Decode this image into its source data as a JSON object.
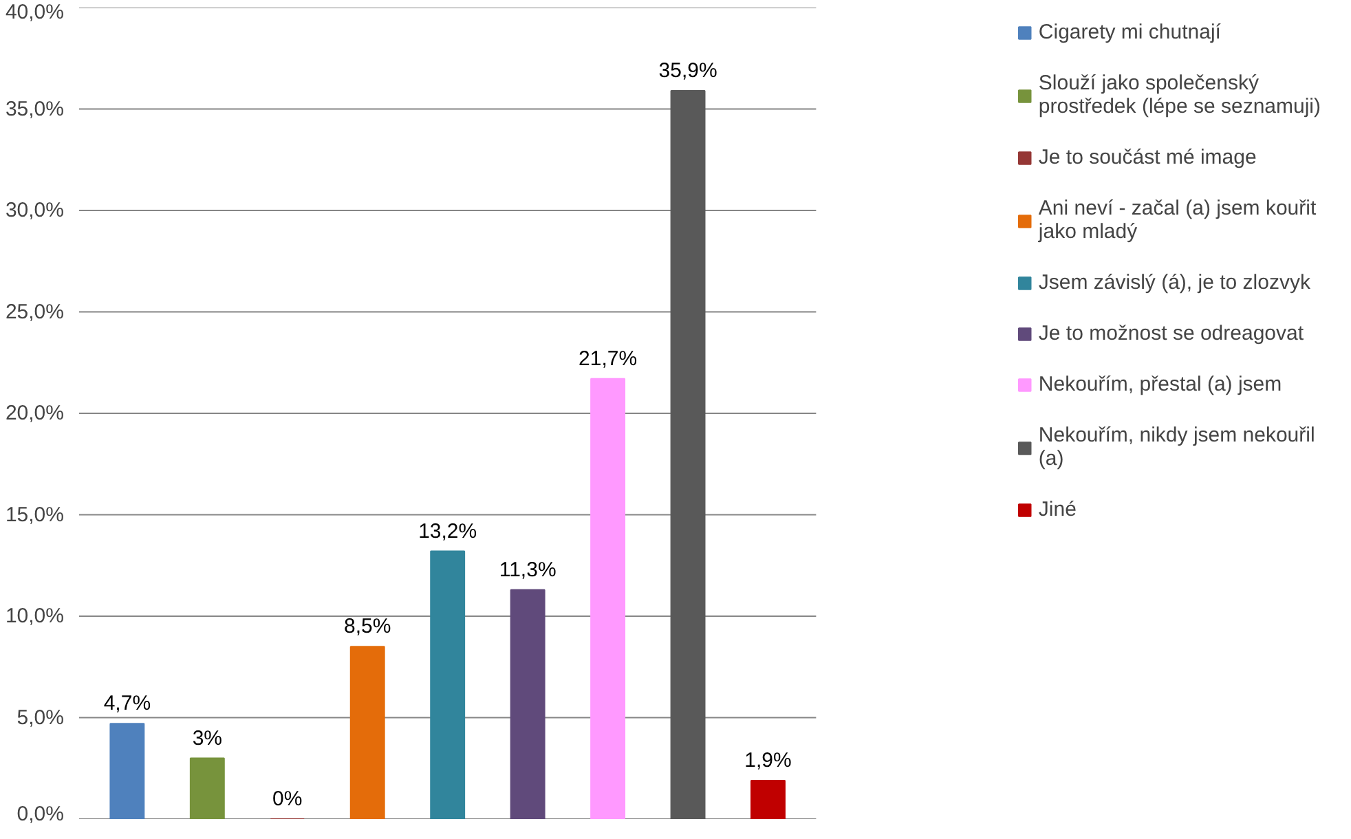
{
  "chart_data": {
    "type": "bar",
    "categories": [
      null,
      null,
      null,
      null,
      null,
      null,
      null,
      null,
      null
    ],
    "ylim": [
      0,
      40
    ],
    "yticks": [
      {
        "value": 0,
        "label": "0,0%"
      },
      {
        "value": 5,
        "label": "5,0%"
      },
      {
        "value": 10,
        "label": "10,0%"
      },
      {
        "value": 15,
        "label": "15,0%"
      },
      {
        "value": 20,
        "label": "20,0%"
      },
      {
        "value": 25,
        "label": "25,0%"
      },
      {
        "value": 30,
        "label": "30,0%"
      },
      {
        "value": 35,
        "label": "35,0%"
      },
      {
        "value": 40,
        "label": "40,0%"
      }
    ],
    "grid": "y",
    "legend": "right",
    "series": [
      {
        "name": "Cigarety mi chutnají",
        "color": "#4f81bd",
        "values": [
          4.7,
          null,
          null,
          null,
          null,
          null,
          null,
          null,
          null
        ],
        "value_labels": [
          "4,7%",
          null,
          null,
          null,
          null,
          null,
          null,
          null,
          null
        ]
      },
      {
        "name": "Slouží jako společenský prostředek (lépe se seznamuji)",
        "color": "#77933c",
        "values": [
          null,
          3,
          null,
          null,
          null,
          null,
          null,
          null,
          null
        ],
        "value_labels": [
          null,
          "3%",
          null,
          null,
          null,
          null,
          null,
          null,
          null
        ]
      },
      {
        "name": "Je to součást mé image",
        "color": "#953735",
        "values": [
          null,
          null,
          0,
          null,
          null,
          null,
          null,
          null,
          null
        ],
        "value_labels": [
          null,
          null,
          "0%",
          null,
          null,
          null,
          null,
          null,
          null
        ]
      },
      {
        "name": "Ani neví - začal (a) jsem kouřit jako mladý",
        "color": "#e46c0a",
        "values": [
          null,
          null,
          null,
          8.5,
          null,
          null,
          null,
          null,
          null
        ],
        "value_labels": [
          null,
          null,
          null,
          "8,5%",
          null,
          null,
          null,
          null,
          null
        ]
      },
      {
        "name": "Jsem závislý (á), je to zlozvyk",
        "color": "#31859c",
        "values": [
          null,
          null,
          null,
          null,
          13.2,
          null,
          null,
          null,
          null
        ],
        "value_labels": [
          null,
          null,
          null,
          null,
          "13,2%",
          null,
          null,
          null,
          null
        ]
      },
      {
        "name": "Je to možnost se odreagovat",
        "color": "#604a7b",
        "values": [
          null,
          null,
          null,
          null,
          null,
          11.3,
          null,
          null,
          null
        ],
        "value_labels": [
          null,
          null,
          null,
          null,
          null,
          "11,3%",
          null,
          null,
          null
        ]
      },
      {
        "name": "Nekouřím, přestal (a) jsem",
        "color": "#ff99ff",
        "values": [
          null,
          null,
          null,
          null,
          null,
          null,
          21.7,
          null,
          null
        ],
        "value_labels": [
          null,
          null,
          null,
          null,
          null,
          null,
          "21,7%",
          null,
          null
        ]
      },
      {
        "name": "Nekouřím, nikdy jsem nekouřil (a)",
        "color": "#595959",
        "values": [
          null,
          null,
          null,
          null,
          null,
          null,
          null,
          35.9,
          null
        ],
        "value_labels": [
          null,
          null,
          null,
          null,
          null,
          null,
          null,
          "35,9%",
          null
        ]
      },
      {
        "name": "Jiné",
        "color": "#c00000",
        "values": [
          null,
          null,
          null,
          null,
          null,
          null,
          null,
          null,
          1.9
        ],
        "value_labels": [
          null,
          null,
          null,
          null,
          null,
          null,
          null,
          null,
          "1,9%"
        ]
      }
    ]
  }
}
